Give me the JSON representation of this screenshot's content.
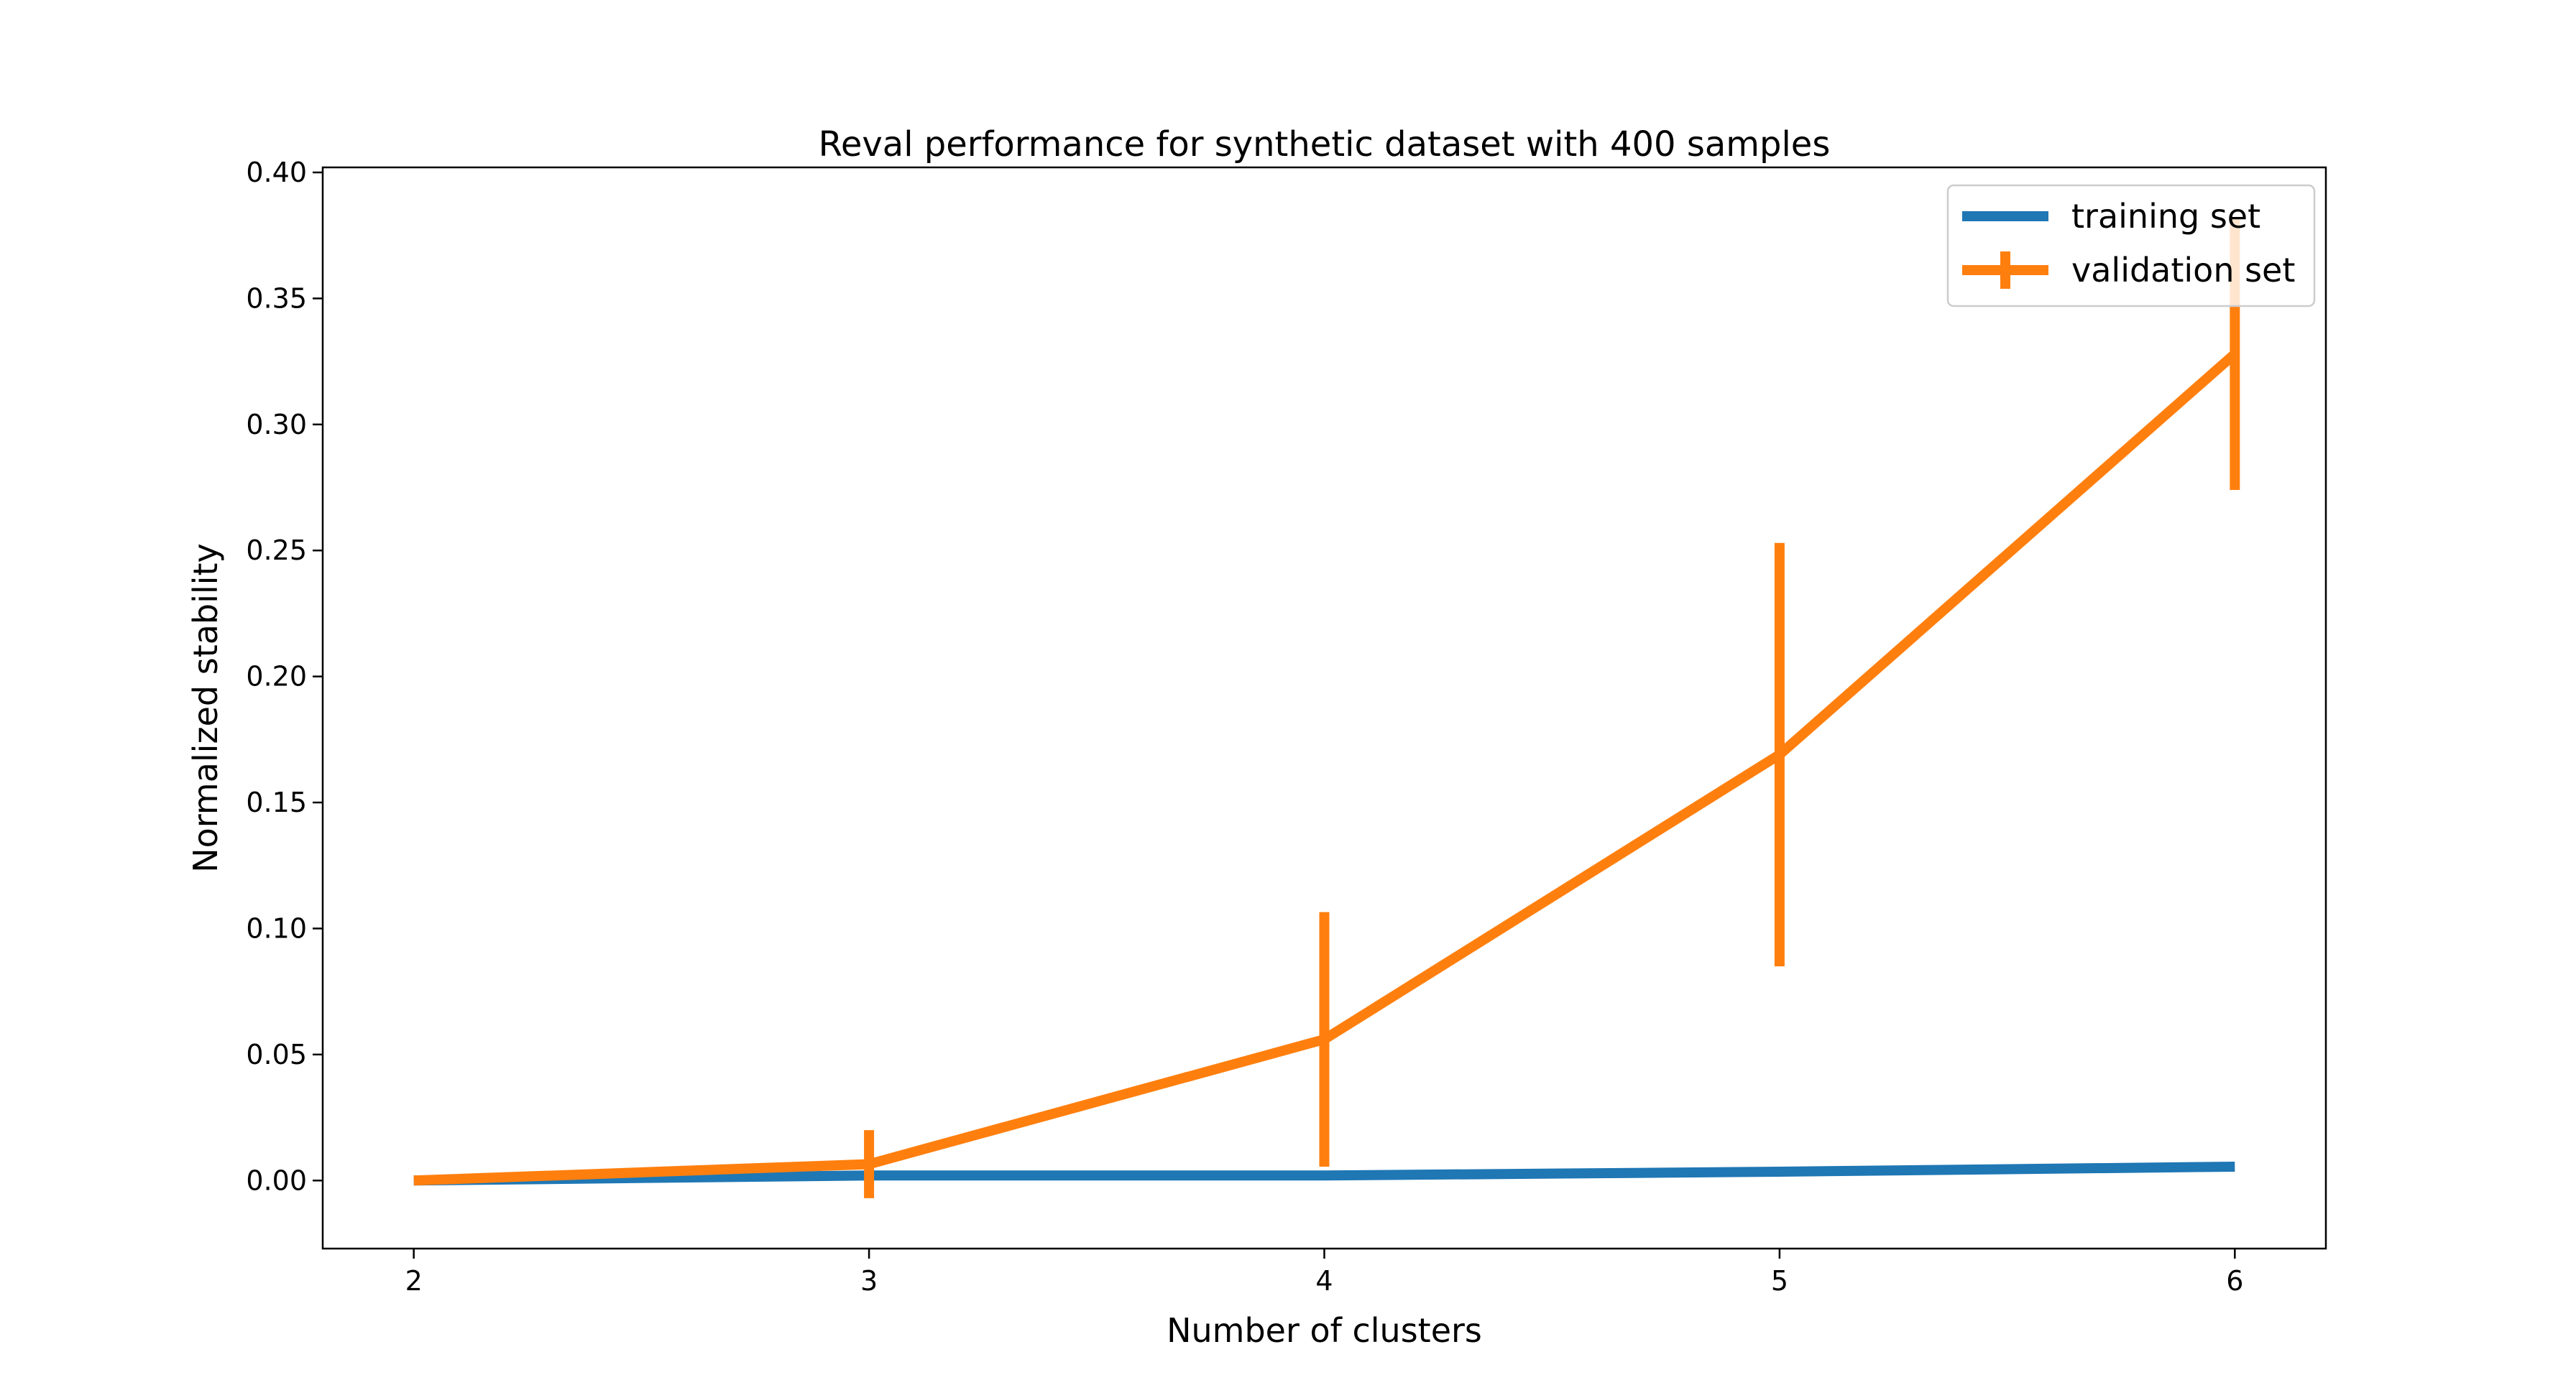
{
  "chart_data": {
    "type": "line",
    "title": "Reval performance for synthetic dataset with 400 samples",
    "xlabel": "Number of clusters",
    "ylabel": "Normalized stability",
    "x": [
      2,
      3,
      4,
      5,
      6
    ],
    "xlim": [
      1.8,
      6.2
    ],
    "ylim": [
      -0.027,
      0.402
    ],
    "xticks": [
      2,
      3,
      4,
      5,
      6
    ],
    "xtick_labels": [
      "2",
      "3",
      "4",
      "5",
      "6"
    ],
    "yticks": [
      0.0,
      0.05,
      0.1,
      0.15,
      0.2,
      0.25,
      0.3,
      0.35,
      0.4
    ],
    "ytick_labels": [
      "0.00",
      "0.05",
      "0.10",
      "0.15",
      "0.20",
      "0.25",
      "0.30",
      "0.35",
      "0.40"
    ],
    "grid": false,
    "legend_position": "top-right",
    "series": [
      {
        "name": "training set",
        "color": "#1f77b4",
        "values": [
          0.0,
          0.002,
          0.002,
          0.0035,
          0.0055
        ]
      },
      {
        "name": "validation set",
        "color": "#ff7f0e",
        "values": [
          0.0,
          0.0065,
          0.056,
          0.169,
          0.328
        ],
        "error": [
          0.0,
          0.0135,
          0.0505,
          0.084,
          0.054
        ]
      }
    ]
  }
}
